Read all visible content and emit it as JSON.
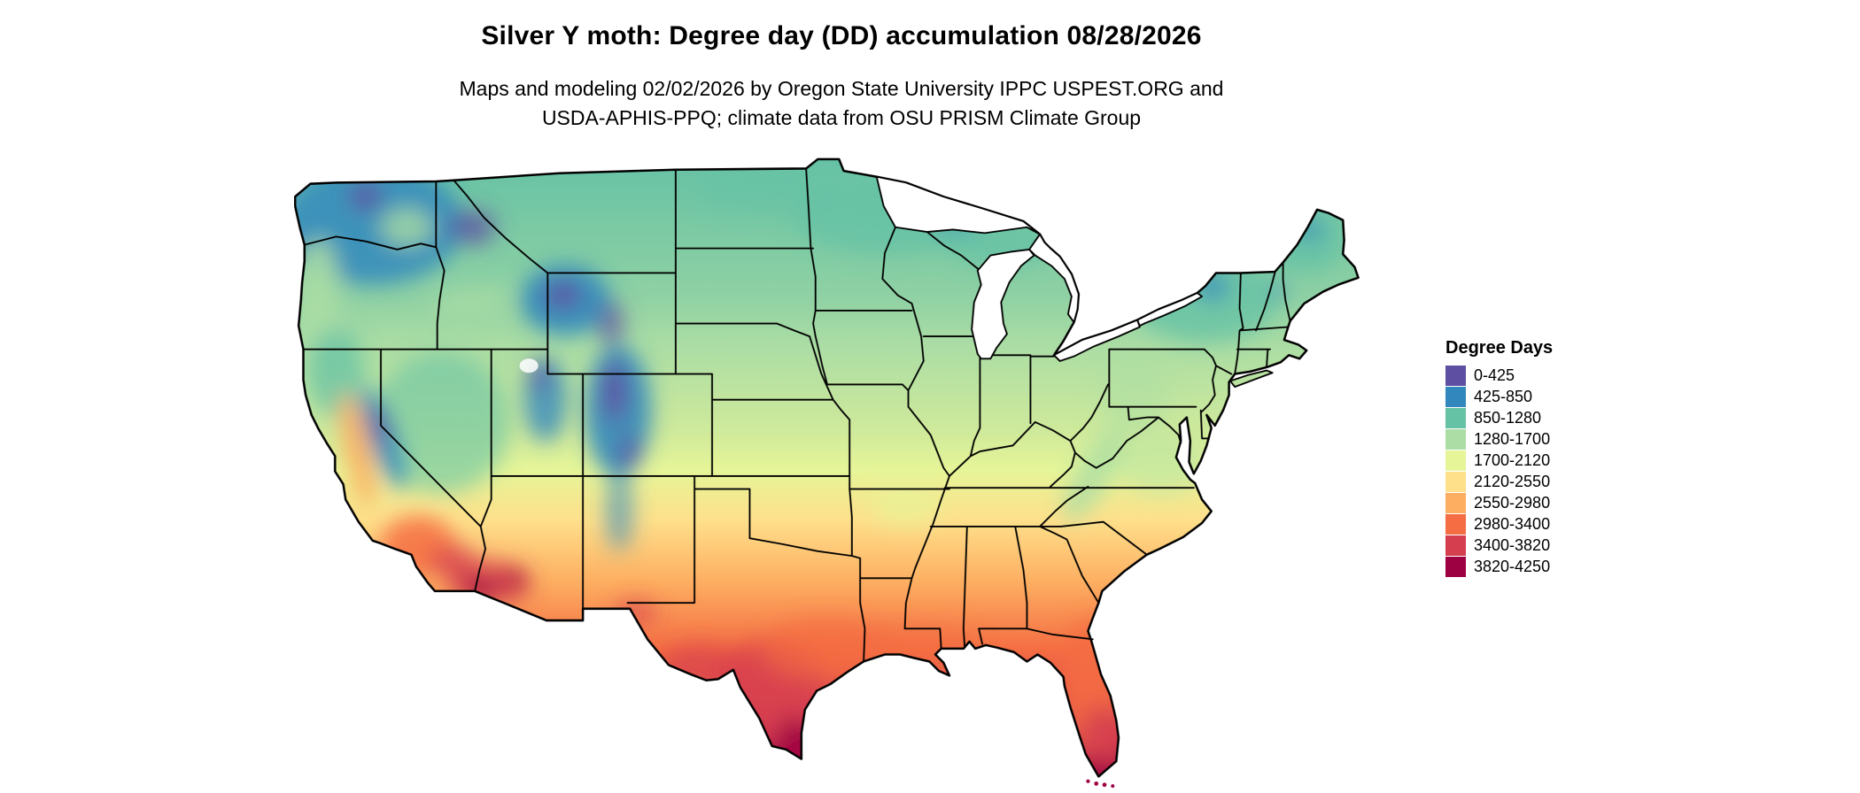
{
  "page": {
    "background_color": "#ffffff",
    "title": "Silver Y moth: Degree day (DD) accumulation 08/28/2026",
    "credits_line1": "Maps and modeling 02/02/2026 by Oregon State University IPPC USPEST.ORG and",
    "credits_line2": "USDA-APHIS-PPQ; climate data from OSU PRISM Climate Group"
  },
  "map": {
    "region": "Contiguous United States",
    "type": "degree-day raster choropleth with state borders"
  },
  "legend": {
    "title": "Degree Days",
    "classes": [
      {
        "label": "0-425",
        "color": "#5e4fa2"
      },
      {
        "label": "425-850",
        "color": "#3288bd"
      },
      {
        "label": "850-1280",
        "color": "#66c2a5"
      },
      {
        "label": "1280-1700",
        "color": "#abdda4"
      },
      {
        "label": "1700-2120",
        "color": "#e6f598"
      },
      {
        "label": "2120-2550",
        "color": "#fee08b"
      },
      {
        "label": "2550-2980",
        "color": "#fdae61"
      },
      {
        "label": "2980-3400",
        "color": "#f46d43"
      },
      {
        "label": "3400-3820",
        "color": "#d53e4f"
      },
      {
        "label": "3820-4250",
        "color": "#9e0142"
      }
    ]
  }
}
